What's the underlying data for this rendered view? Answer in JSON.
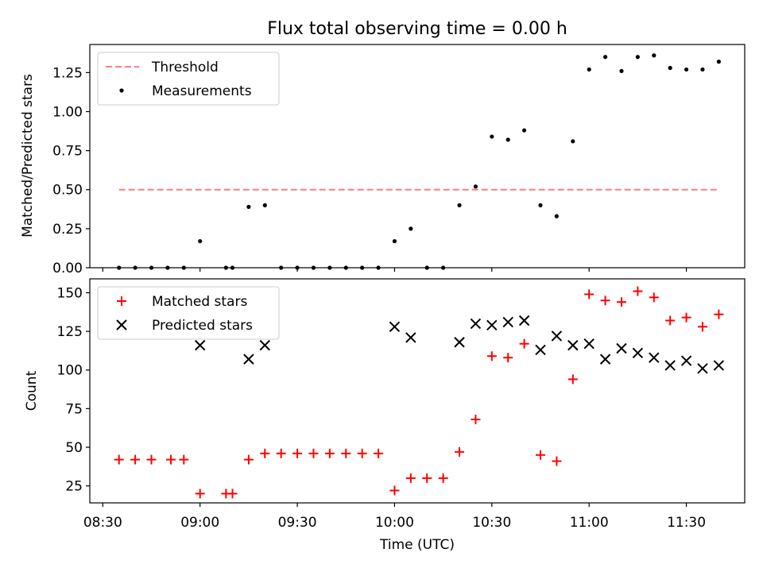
{
  "chart_data": [
    {
      "type": "scatter",
      "title": "Flux total observing time = 0.00 h",
      "xlabel": "",
      "ylabel": "Matched/Predicted stars",
      "xlim": [
        "08:26",
        "11:48"
      ],
      "ylim": [
        0,
        1.43
      ],
      "yticks": [
        0.0,
        0.25,
        0.5,
        0.75,
        1.0,
        1.25
      ],
      "ytick_labels": [
        "0.00",
        "0.25",
        "0.50",
        "0.75",
        "1.00",
        "1.25"
      ],
      "xticks": [
        "08:30",
        "09:00",
        "09:30",
        "10:00",
        "10:30",
        "11:00",
        "11:30"
      ],
      "grid": false,
      "legend_position": "top-left",
      "threshold": {
        "name": "Threshold",
        "value": 0.5,
        "x": [
          "08:35",
          "11:40"
        ],
        "color": "#ff7f7f",
        "style": "dashed"
      },
      "series": [
        {
          "name": "Measurements",
          "color": "#000000",
          "marker": "dot",
          "x": [
            "08:35",
            "08:40",
            "08:45",
            "08:50",
            "08:55",
            "09:00",
            "09:08",
            "09:10",
            "09:15",
            "09:20",
            "09:25",
            "09:30",
            "09:35",
            "09:40",
            "09:45",
            "09:50",
            "09:55",
            "10:00",
            "10:05",
            "10:10",
            "10:15",
            "10:20",
            "10:25",
            "10:30",
            "10:35",
            "10:40",
            "10:45",
            "10:50",
            "10:55",
            "11:00",
            "11:05",
            "11:10",
            "11:15",
            "11:20",
            "11:25",
            "11:30",
            "11:35",
            "11:40"
          ],
          "y": [
            0.0,
            0.0,
            0.0,
            0.0,
            0.0,
            0.17,
            0.0,
            0.0,
            0.39,
            0.4,
            0.0,
            0.0,
            0.0,
            0.0,
            0.0,
            0.0,
            0.0,
            0.17,
            0.25,
            0.0,
            0.0,
            0.4,
            0.52,
            0.84,
            0.82,
            0.88,
            0.4,
            0.33,
            0.81,
            1.27,
            1.35,
            1.26,
            1.35,
            1.36,
            1.28,
            1.27,
            1.27,
            1.32
          ]
        }
      ]
    },
    {
      "type": "scatter",
      "title": "",
      "xlabel": "Time (UTC)",
      "ylabel": "Count",
      "xlim": [
        "08:26",
        "11:48"
      ],
      "ylim": [
        14,
        159
      ],
      "yticks": [
        25,
        50,
        75,
        100,
        125,
        150
      ],
      "ytick_labels": [
        "25",
        "50",
        "75",
        "100",
        "125",
        "150"
      ],
      "xticks": [
        "08:30",
        "09:00",
        "09:30",
        "10:00",
        "10:30",
        "11:00",
        "11:30"
      ],
      "xtick_labels": [
        "08:30",
        "09:00",
        "09:30",
        "10:00",
        "10:30",
        "11:00",
        "11:30"
      ],
      "grid": false,
      "legend_position": "top-left",
      "series": [
        {
          "name": "Matched stars",
          "color": "#ff0000",
          "marker": "plus",
          "x": [
            "08:35",
            "08:40",
            "08:45",
            "08:51",
            "08:55",
            "09:00",
            "09:08",
            "09:10",
            "09:15",
            "09:20",
            "09:25",
            "09:30",
            "09:35",
            "09:40",
            "09:45",
            "09:50",
            "09:55",
            "10:00",
            "10:05",
            "10:10",
            "10:15",
            "10:20",
            "10:25",
            "10:30",
            "10:35",
            "10:40",
            "10:45",
            "10:50",
            "10:55",
            "11:00",
            "11:05",
            "11:10",
            "11:15",
            "11:20",
            "11:25",
            "11:30",
            "11:35",
            "11:40"
          ],
          "y": [
            42,
            42,
            42,
            42,
            42,
            20,
            20,
            20,
            42,
            46,
            46,
            46,
            46,
            46,
            46,
            46,
            46,
            22,
            30,
            30,
            30,
            47,
            68,
            109,
            108,
            117,
            45,
            41,
            94,
            149,
            145,
            144,
            151,
            147,
            132,
            134,
            128,
            136
          ]
        },
        {
          "name": "Predicted stars",
          "color": "#000000",
          "marker": "x",
          "x": [
            "09:00",
            "09:15",
            "09:20",
            "10:00",
            "10:05",
            "10:20",
            "10:25",
            "10:30",
            "10:35",
            "10:40",
            "10:45",
            "10:50",
            "10:55",
            "11:00",
            "11:05",
            "11:10",
            "11:15",
            "11:20",
            "11:25",
            "11:30",
            "11:35",
            "11:40"
          ],
          "y": [
            116,
            107,
            116,
            128,
            121,
            118,
            130,
            129,
            131,
            132,
            113,
            122,
            116,
            117,
            107,
            114,
            111,
            108,
            103,
            106,
            101,
            103
          ]
        }
      ]
    }
  ]
}
